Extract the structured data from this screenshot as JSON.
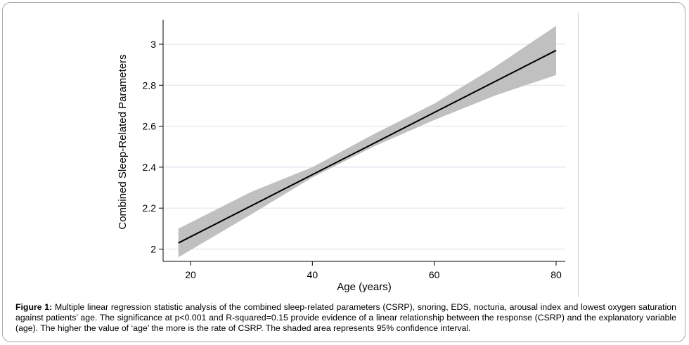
{
  "figure": {
    "caption_label": "Figure 1:",
    "caption_text": "Multiple linear regression statistic analysis of the combined sleep-related parameters (CSRP), snoring, EDS, nocturia, arousal index and lowest oxygen saturation against patients’ age.  The significance at p<0.001 and R-squared=0.15 provide evidence of a linear relationship between the response (CSRP) and the explanatory variable (age). The higher the value of ‘age’ the more is the rate of CSRP. The shaded area represents 95% confidence interval."
  },
  "chart_data": {
    "type": "line",
    "xlabel": "Age (years)",
    "ylabel": "Combined Sleep-Related Parameters",
    "xlim": [
      15.5,
      81.5
    ],
    "ylim": [
      1.94,
      3.12
    ],
    "x_ticks": [
      20,
      40,
      60,
      80
    ],
    "y_ticks": [
      2,
      2.2,
      2.4,
      2.6,
      2.8,
      3
    ],
    "grid": "horizontal",
    "series": [
      {
        "x": [
          18,
          80
        ],
        "y": [
          2.03,
          2.97
        ]
      }
    ],
    "confidence_band": {
      "x": [
        18,
        30,
        40,
        50,
        60,
        70,
        80
      ],
      "lower": [
        1.96,
        2.17,
        2.35,
        2.5,
        2.63,
        2.75,
        2.85
      ],
      "upper": [
        2.1,
        2.28,
        2.4,
        2.56,
        2.71,
        2.89,
        3.09
      ]
    },
    "colors": {
      "line": "#000000",
      "band": "#c0c0c0",
      "grid": "#dde6ee",
      "axis": "#000000"
    }
  }
}
